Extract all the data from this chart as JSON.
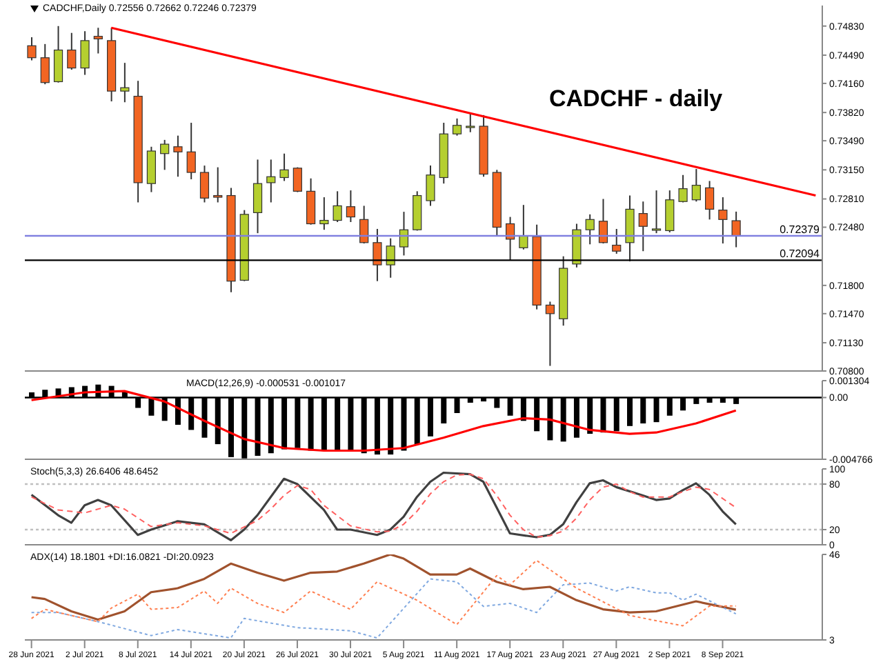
{
  "chart_data": [
    {
      "type": "candlestick",
      "title": "CADCHF,Daily 0.72556 0.72662 0.72246 0.72379",
      "annotations": [
        "CADCHF - daily"
      ],
      "categories": [
        null,
        null,
        null,
        null,
        null,
        null,
        null,
        null,
        null,
        null,
        null,
        null,
        null,
        null,
        null,
        null,
        null,
        null,
        null,
        null,
        null,
        null,
        null,
        null,
        null,
        null,
        null,
        null,
        null,
        null,
        null,
        null,
        null,
        null,
        null,
        null,
        null,
        null,
        null,
        null,
        null,
        null,
        null,
        null,
        null,
        null,
        null,
        null,
        null,
        null,
        null,
        null,
        null,
        null,
        null,
        null,
        null,
        null,
        null,
        null
      ],
      "ohlc": [
        [
          0.746,
          0.747,
          0.7443,
          0.7446
        ],
        [
          0.7446,
          0.7462,
          0.7415,
          0.7417
        ],
        [
          0.7418,
          0.7483,
          0.7417,
          0.7455
        ],
        [
          0.7455,
          0.7475,
          0.7432,
          0.7434
        ],
        [
          0.7434,
          0.7477,
          0.7426,
          0.7466
        ],
        [
          0.7471,
          0.7481,
          0.7451,
          0.7468
        ],
        [
          0.7466,
          0.7481,
          0.7395,
          0.7407
        ],
        [
          0.7407,
          0.744,
          0.7394,
          0.7411
        ],
        [
          0.7401,
          0.7419,
          0.7277,
          0.73
        ],
        [
          0.7299,
          0.7342,
          0.7289,
          0.7337
        ],
        [
          0.7334,
          0.735,
          0.7315,
          0.7345
        ],
        [
          0.7342,
          0.7355,
          0.7307,
          0.7336
        ],
        [
          0.7336,
          0.737,
          0.7304,
          0.7312
        ],
        [
          0.7312,
          0.732,
          0.7277,
          0.7282
        ],
        [
          0.7285,
          0.7318,
          0.7277,
          0.7283
        ],
        [
          0.7285,
          0.7294,
          0.7172,
          0.7185
        ],
        [
          0.7186,
          0.7268,
          0.7185,
          0.7263
        ],
        [
          0.7265,
          0.7327,
          0.7241,
          0.7299
        ],
        [
          0.73,
          0.7327,
          0.7277,
          0.7307
        ],
        [
          0.7306,
          0.7334,
          0.7302,
          0.7315
        ],
        [
          0.7317,
          0.7318,
          0.7289,
          0.729
        ],
        [
          0.729,
          0.7305,
          0.7251,
          0.7252
        ],
        [
          0.7252,
          0.7283,
          0.7245,
          0.7256
        ],
        [
          0.7256,
          0.729,
          0.7254,
          0.7273
        ],
        [
          0.7272,
          0.7291,
          0.7254,
          0.726
        ],
        [
          0.7257,
          0.7273,
          0.7229,
          0.723
        ],
        [
          0.723,
          0.7246,
          0.7185,
          0.7204
        ],
        [
          0.7204,
          0.7235,
          0.7189,
          0.7226
        ],
        [
          0.7225,
          0.7266,
          0.7215,
          0.7245
        ],
        [
          0.7245,
          0.729,
          0.7244,
          0.7285
        ],
        [
          0.7279,
          0.732,
          0.7273,
          0.7309
        ],
        [
          0.7306,
          0.737,
          0.7299,
          0.7357
        ],
        [
          0.7357,
          0.7375,
          0.7355,
          0.7367
        ],
        [
          0.7366,
          0.7382,
          0.7359,
          0.7366
        ],
        [
          0.7366,
          0.7379,
          0.7307,
          0.731
        ],
        [
          0.7312,
          0.7315,
          0.7238,
          0.7248
        ],
        [
          0.7252,
          0.726,
          0.7209,
          0.7234
        ],
        [
          0.7224,
          0.7274,
          0.7222,
          0.7238
        ],
        [
          0.7237,
          0.7251,
          0.7152,
          0.7157
        ],
        [
          0.7157,
          0.7161,
          0.7086,
          0.7147
        ],
        [
          0.7141,
          0.7214,
          0.7133,
          0.72
        ],
        [
          0.7205,
          0.7252,
          0.7201,
          0.7245
        ],
        [
          0.7245,
          0.7263,
          0.7228,
          0.7257
        ],
        [
          0.7255,
          0.7281,
          0.7229,
          0.723
        ],
        [
          0.7227,
          0.7246,
          0.7217,
          0.722
        ],
        [
          0.723,
          0.7285,
          0.7208,
          0.7269
        ],
        [
          0.7264,
          0.7278,
          0.722,
          0.7249
        ],
        [
          0.7245,
          0.7291,
          0.7241,
          0.7246
        ],
        [
          0.7244,
          0.7291,
          0.7242,
          0.728
        ],
        [
          0.7278,
          0.7309,
          0.7277,
          0.7293
        ],
        [
          0.728,
          0.7316,
          0.7278,
          0.7297
        ],
        [
          0.7294,
          0.7302,
          0.7257,
          0.7269
        ],
        [
          0.7268,
          0.7283,
          0.7229,
          0.7257
        ],
        [
          0.72556,
          0.72662,
          0.72246,
          0.72379
        ],
        null,
        null,
        null,
        null,
        null,
        null
      ],
      "colors": [
        "#f26522",
        "#f26522",
        "#b5cf2f",
        "#f26522",
        "#b5cf2f",
        "#f26522",
        "#f26522",
        "#b5cf2f",
        "#f26522",
        "#b5cf2f",
        "#b5cf2f",
        "#f26522",
        "#f26522",
        "#f26522",
        "#f26522",
        "#f26522",
        "#b5cf2f",
        "#b5cf2f",
        "#b5cf2f",
        "#b5cf2f",
        "#f26522",
        "#f26522",
        "#b5cf2f",
        "#b5cf2f",
        "#f26522",
        "#f26522",
        "#f26522",
        "#b5cf2f",
        "#b5cf2f",
        "#b5cf2f",
        "#b5cf2f",
        "#b5cf2f",
        "#b5cf2f",
        "#b5cf2f",
        "#f26522",
        "#f26522",
        "#f26522",
        "#b5cf2f",
        "#f26522",
        "#f26522",
        "#b5cf2f",
        "#b5cf2f",
        "#b5cf2f",
        "#f26522",
        "#f26522",
        "#b5cf2f",
        "#f26522",
        "#b5cf2f",
        "#b5cf2f",
        "#b5cf2f",
        "#b5cf2f",
        "#f26522",
        "#f26522",
        "#f26522",
        null,
        null,
        null,
        null,
        null,
        null
      ],
      "series": [
        {
          "type": "line",
          "color": "#ff0000",
          "values": [
            null,
            null,
            null,
            null,
            null,
            null,
            0.7481,
            null,
            null,
            null,
            null,
            null,
            null,
            null,
            null,
            null,
            null,
            null,
            null,
            null,
            null,
            null,
            null,
            null,
            null,
            null,
            null,
            null,
            null,
            null,
            null,
            null,
            null,
            null,
            null,
            null,
            null,
            null,
            null,
            null,
            null,
            null,
            null,
            null,
            null,
            null,
            null,
            null,
            null,
            null,
            null,
            null,
            null,
            null,
            null,
            null,
            null,
            null,
            null,
            0.7285
          ]
        }
      ],
      "ylim": [
        0.708,
        0.7507
      ],
      "yticks": [
        {
          "value": 0.7483,
          "label": "0.74830"
        },
        {
          "value": 0.7449,
          "label": "0.74490"
        },
        {
          "value": 0.7416,
          "label": "0.74160"
        },
        {
          "value": 0.7382,
          "label": "0.73820"
        },
        {
          "value": 0.7349,
          "label": "0.73490"
        },
        {
          "value": 0.7315,
          "label": "0.73150"
        },
        {
          "value": 0.7281,
          "label": "0.72810"
        },
        {
          "value": 0.7248,
          "label": "0.72480"
        },
        {
          "value": 0.718,
          "label": "0.71800"
        },
        {
          "value": 0.7147,
          "label": "0.71470"
        },
        {
          "value": 0.7113,
          "label": "0.71130"
        },
        {
          "value": 0.708,
          "label": "0.70800"
        }
      ],
      "ref_lines": [
        {
          "axis": "y",
          "value": 0.72379,
          "label": "0.72379",
          "color": "#8080e0"
        },
        {
          "axis": "y",
          "value": 0.72094,
          "label": "0.72094",
          "color": "#000000"
        }
      ],
      "tick_labels": "y"
    },
    {
      "type": "bar",
      "title": "MACD(12,26,9) -0.000531 -0.001017",
      "categories": [
        null,
        null,
        null,
        null,
        null,
        null,
        null,
        null,
        null,
        null,
        null,
        null,
        null,
        null,
        null,
        null,
        null,
        null,
        null,
        null,
        null,
        null,
        null,
        null,
        null,
        null,
        null,
        null,
        null,
        null,
        null,
        null,
        null,
        null,
        null,
        null,
        null,
        null,
        null,
        null,
        null,
        null,
        null,
        null,
        null,
        null,
        null,
        null,
        null,
        null,
        null,
        null,
        null,
        null,
        null,
        null,
        null,
        null,
        null,
        null
      ],
      "series": [
        {
          "type": "bar",
          "color": "#000000",
          "values": [
            0.0004,
            0.0006,
            0.0007,
            0.0008,
            0.0009,
            0.001,
            0.0009,
            0.0004,
            -0.0008,
            -0.0014,
            -0.0018,
            -0.0021,
            -0.0025,
            -0.0031,
            -0.0036,
            -0.0046,
            -0.0047,
            -0.0045,
            -0.0043,
            -0.004,
            -0.0039,
            -0.0041,
            -0.0041,
            -0.0041,
            -0.0041,
            -0.0043,
            -0.0044,
            -0.0044,
            -0.0041,
            -0.0036,
            -0.003,
            -0.002,
            -0.0012,
            -0.0004,
            -0.0003,
            -0.0008,
            -0.0014,
            -0.0018,
            -0.0026,
            -0.0033,
            -0.0034,
            -0.0031,
            -0.0028,
            -0.0027,
            -0.0026,
            -0.0022,
            -0.002,
            -0.0019,
            -0.0014,
            -0.001,
            -0.0005,
            -0.0004,
            -0.0004,
            -0.0005,
            null,
            null,
            null,
            null,
            null,
            null
          ]
        },
        {
          "type": "line",
          "color": "#ff0000",
          "values": [
            -0.0002,
            null,
            null,
            null,
            0.0004,
            null,
            null,
            0.0005,
            null,
            null,
            -0.0003,
            null,
            null,
            -0.0018,
            null,
            null,
            -0.0032,
            null,
            null,
            -0.0039,
            null,
            null,
            -0.0041,
            null,
            null,
            -0.0041,
            null,
            null,
            -0.0039,
            null,
            null,
            -0.0031,
            null,
            null,
            -0.0022,
            null,
            null,
            -0.0016,
            null,
            -0.0017,
            null,
            null,
            -0.0025,
            null,
            null,
            -0.0028,
            null,
            -0.0027,
            null,
            null,
            -0.002,
            null,
            null,
            -0.001,
            null,
            null,
            null,
            null,
            null,
            null
          ]
        }
      ],
      "ylim": [
        -0.004766,
        0.001304
      ],
      "yticks": [
        {
          "value": 0.001304,
          "label": "0.001304"
        },
        {
          "value": 0,
          "label": "0.00"
        },
        {
          "value": -0.004766,
          "label": "-0.004766"
        }
      ],
      "ref_lines": [
        {
          "axis": "y",
          "value": 0,
          "color": "#000000"
        }
      ],
      "tick_labels": "y"
    },
    {
      "type": "line",
      "title": "Stoch(5,3,3) 26.6406 48.6452",
      "categories": [
        null,
        null,
        null,
        null,
        null,
        null,
        null,
        null,
        null,
        null,
        null,
        null,
        null,
        null,
        null,
        null,
        null,
        null,
        null,
        null,
        null,
        null,
        null,
        null,
        null,
        null,
        null,
        null,
        null,
        null,
        null,
        null,
        null,
        null,
        null,
        null,
        null,
        null,
        null,
        null,
        null,
        null,
        null,
        null,
        null,
        null,
        null,
        null,
        null,
        null,
        null,
        null,
        null,
        null,
        null,
        null,
        null,
        null,
        null,
        null
      ],
      "series": [
        {
          "color": "#404040",
          "values": [
            66,
            null,
            39,
            29,
            52,
            59,
            52,
            null,
            13,
            20,
            null,
            31,
            null,
            27,
            null,
            6,
            20,
            39,
            63,
            87,
            80,
            null,
            46,
            20,
            20,
            null,
            13,
            20,
            37,
            63,
            83,
            95,
            null,
            93,
            83,
            49,
            15,
            null,
            10,
            13,
            27,
            56,
            81,
            85,
            76,
            null,
            65,
            59,
            61,
            72,
            81,
            66,
            44,
            27,
            null,
            null,
            null,
            null,
            null,
            null
          ]
        },
        {
          "color": "#ff6060",
          "line_style": "dashed",
          "values": [
            63,
            null,
            46,
            null,
            42,
            null,
            52,
            47,
            null,
            24,
            null,
            29,
            null,
            25,
            null,
            15,
            null,
            32,
            47,
            65,
            78,
            73,
            52,
            null,
            25,
            null,
            17,
            18,
            27,
            44,
            67,
            83,
            92,
            93,
            87,
            65,
            39,
            20,
            10,
            12,
            18,
            35,
            59,
            76,
            80,
            70,
            63,
            63,
            63,
            70,
            76,
            73,
            null,
            49,
            null,
            null,
            null,
            null,
            null,
            null
          ]
        }
      ],
      "ylim": [
        0,
        100
      ],
      "yticks": [
        0,
        20,
        80,
        100
      ],
      "ref_lines": [
        {
          "axis": "y",
          "value": 80,
          "color": "#c0c0c0",
          "line_style": "dotted"
        },
        {
          "axis": "y",
          "value": 20,
          "color": "#c0c0c0",
          "line_style": "dotted"
        }
      ],
      "tick_labels": "y"
    },
    {
      "type": "line",
      "title": "ADX(14) 18.1801 +DI:16.0821 -DI:20.0923",
      "categories": [
        "28 Jun 2021",
        null,
        null,
        null,
        "2 Jul 2021",
        null,
        null,
        null,
        "8 Jul 2021",
        null,
        null,
        null,
        "14 Jul 2021",
        null,
        null,
        null,
        "20 Jul 2021",
        null,
        null,
        null,
        "26 Jul 2021",
        null,
        null,
        null,
        "30 Jul 2021",
        null,
        null,
        null,
        "5 Aug 2021",
        null,
        null,
        null,
        "11 Aug 2021",
        null,
        null,
        null,
        "17 Aug 2021",
        null,
        null,
        null,
        "23 Aug 2021",
        null,
        null,
        null,
        "27 Aug 2021",
        null,
        null,
        null,
        "2 Sep 2021",
        null,
        null,
        null,
        "8 Sep 2021",
        null,
        null,
        null,
        null,
        null,
        null,
        null
      ],
      "series": [
        {
          "color": "#a0522d",
          "values": [
            24.5,
            23.6,
            null,
            17.4,
            null,
            13.2,
            null,
            17.4,
            null,
            27,
            null,
            29,
            null,
            33.7,
            null,
            41.4,
            null,
            36.8,
            null,
            32.8,
            null,
            36.8,
            null,
            37.4,
            null,
            41.4,
            null,
            46,
            43.9,
            null,
            35.9,
            null,
            35.9,
            38.9,
            null,
            32.2,
            null,
            28.5,
            null,
            29.7,
            null,
            23,
            null,
            18.4,
            null,
            16.8,
            null,
            17.4,
            null,
            null,
            22.4,
            null,
            null,
            18.2,
            null,
            null,
            null,
            null,
            null,
            null
          ]
        },
        {
          "color": "#7fa8e0",
          "line_style": "dotted",
          "values": [
            16.8,
            null,
            16.8,
            null,
            null,
            12.2,
            null,
            null,
            null,
            5.2,
            null,
            8.2,
            null,
            null,
            null,
            4,
            13.8,
            null,
            null,
            null,
            9.2,
            null,
            null,
            null,
            7.6,
            null,
            4,
            null,
            null,
            null,
            33.7,
            null,
            32.2,
            null,
            19.9,
            null,
            21.4,
            null,
            16.8,
            null,
            30.7,
            null,
            31.6,
            null,
            27.6,
            29.7,
            null,
            26.7,
            26.7,
            23,
            26,
            null,
            null,
            16.1,
            null,
            null,
            null,
            null,
            null,
            null
          ]
        },
        {
          "color": "#ff7f50",
          "line_style": "dotted",
          "values": [
            13.8,
            18.4,
            null,
            null,
            null,
            12.2,
            19,
            null,
            26,
            18.4,
            null,
            19.3,
            null,
            27.6,
            21.4,
            29.1,
            null,
            21.4,
            null,
            16.8,
            null,
            27.6,
            null,
            null,
            18.4,
            null,
            32.2,
            null,
            null,
            23,
            null,
            null,
            10.7,
            null,
            null,
            35.3,
            30.7,
            null,
            43,
            null,
            null,
            29.1,
            null,
            null,
            null,
            15.3,
            null,
            null,
            null,
            10.1,
            null,
            20,
            null,
            20.1,
            null,
            null,
            null,
            null,
            null,
            null
          ]
        }
      ],
      "ylim": [
        3,
        46
      ],
      "yticks": [
        3,
        46
      ]
    }
  ]
}
